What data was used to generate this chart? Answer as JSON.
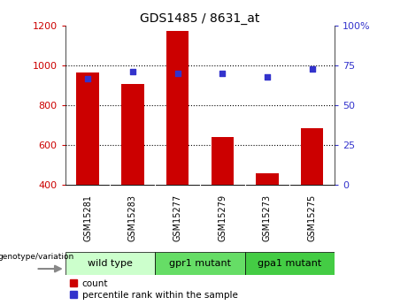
{
  "title": "GDS1485 / 8631_at",
  "samples": [
    "GSM15281",
    "GSM15283",
    "GSM15277",
    "GSM15279",
    "GSM15273",
    "GSM15275"
  ],
  "counts": [
    965,
    905,
    1175,
    640,
    455,
    685
  ],
  "percentile_ranks": [
    67,
    71,
    70,
    70,
    68,
    73
  ],
  "ylim_left": [
    400,
    1200
  ],
  "ylim_right": [
    0,
    100
  ],
  "bar_color": "#cc0000",
  "dot_color": "#3333cc",
  "groups": [
    {
      "label": "wild type",
      "indices": [
        0,
        1
      ],
      "color": "#ccffcc"
    },
    {
      "label": "gpr1 mutant",
      "indices": [
        2,
        3
      ],
      "color": "#66dd66"
    },
    {
      "label": "gpa1 mutant",
      "indices": [
        4,
        5
      ],
      "color": "#44cc44"
    }
  ],
  "grid_color": "#000000",
  "plot_bg_color": "#ffffff",
  "sample_bg_color": "#cccccc",
  "legend_label_count": "count",
  "legend_label_pct": "percentile rank within the sample",
  "genotype_label": "genotype/variation"
}
